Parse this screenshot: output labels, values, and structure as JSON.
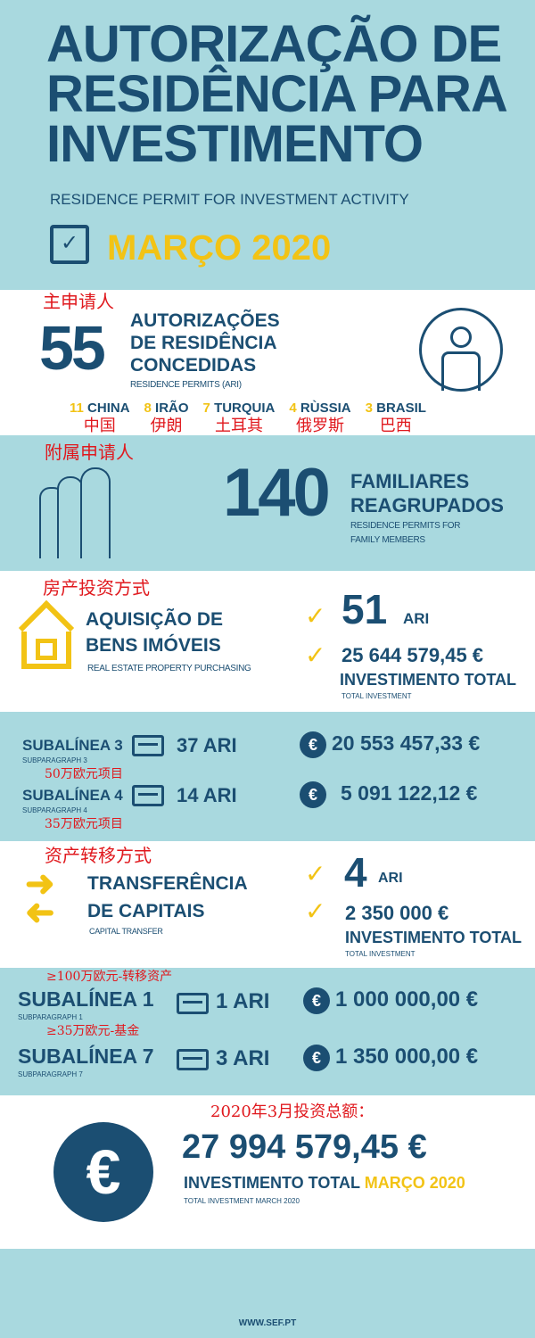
{
  "header": {
    "title_lines": [
      "AUTORIZAÇÃO DE",
      "RESIDÊNCIA PARA",
      "INVESTIMENTO"
    ],
    "subtitle": "RESIDENCE PERMIT FOR INVESTMENT ACTIVITY",
    "month": "MARÇO 2020",
    "icon": "calendar-check-icon"
  },
  "main_applicants": {
    "annotation": "主申请人",
    "count": "55",
    "title_lines": [
      "AUTORIZAÇÕES",
      "DE RESIDÊNCIA",
      "CONCEDIDAS"
    ],
    "subtitle": "RESIDENCE PERMITS (ARI)",
    "icon": "person-icon",
    "countries": [
      {
        "n": "11",
        "name": "CHINA",
        "zh": "中国"
      },
      {
        "n": "8",
        "name": "IRÃO",
        "zh": "伊朗"
      },
      {
        "n": "7",
        "name": "TURQUIA",
        "zh": "土耳其"
      },
      {
        "n": "4",
        "name": "RÙSSIA",
        "zh": "俄罗斯"
      },
      {
        "n": "3",
        "name": "BRASIL",
        "zh": "巴西"
      }
    ]
  },
  "family": {
    "annotation": "附属申请人",
    "count": "140",
    "title_lines": [
      "FAMILIARES",
      "REAGRUPADOS"
    ],
    "subtitle_lines": [
      "RESIDENCE PERMITS FOR",
      "FAMILY MEMBERS"
    ],
    "icon": "family-icon"
  },
  "real_estate": {
    "annotation": "房产投资方式",
    "title_lines": [
      "AQUISIÇÃO DE",
      "BENS IMÓVEIS"
    ],
    "subtitle": "REAL ESTATE PROPERTY PURCHASING",
    "ari": "51",
    "ari_label": "ARI",
    "amount": "25 644 579,45 €",
    "total_label": "INVESTIMENTO TOTAL",
    "total_sub": "TOTAL INVESTMENT",
    "rows": [
      {
        "label": "SUBALÍNEA 3",
        "sub": "SUBPARAGRAPH 3",
        "ari": "37 ARI",
        "amount": "20 553 457,33 €",
        "note": "50万欧元项目"
      },
      {
        "label": "SUBALÍNEA 4",
        "sub": "SUBPARAGRAPH 4",
        "ari": "14 ARI",
        "amount": "5 091 122,12 €",
        "note": "35万欧元项目"
      }
    ]
  },
  "capital": {
    "annotation": "资产转移方式",
    "title_lines": [
      "TRANSFERÊNCIA",
      "DE CAPITAIS"
    ],
    "subtitle": "CAPITAL TRANSFER",
    "ari": "4",
    "ari_label": "ARI",
    "amount": "2 350 000 €",
    "total_label": "INVESTIMENTO TOTAL",
    "total_sub": "TOTAL INVESTMENT",
    "rows": [
      {
        "note": "≥100万欧元-转移资产",
        "label": "SUBALÍNEA 1",
        "sub": "SUBPARAGRAPH 1",
        "ari": "1 ARI",
        "amount": "1 000 000,00 €"
      },
      {
        "note": "≥35万欧元-基金",
        "label": "SUBALÍNEA 7",
        "sub": "SUBPARAGRAPH 7",
        "ari": "3 ARI",
        "amount": "1 350 000,00 €"
      }
    ]
  },
  "total": {
    "annotation": "2020年3月投资总额：",
    "amount": "27 994 579,45 €",
    "label": "INVESTIMENTO TOTAL",
    "label_month": "MARÇO 2020",
    "sub": "TOTAL INVESTMENT MARCH 2020"
  },
  "footer": {
    "url": "WWW.SEF.PT"
  },
  "colors": {
    "dark_blue": "#1b4e72",
    "yellow": "#f2c315",
    "light_blue": "#a9d9df",
    "annotation_red": "#e0191e"
  }
}
